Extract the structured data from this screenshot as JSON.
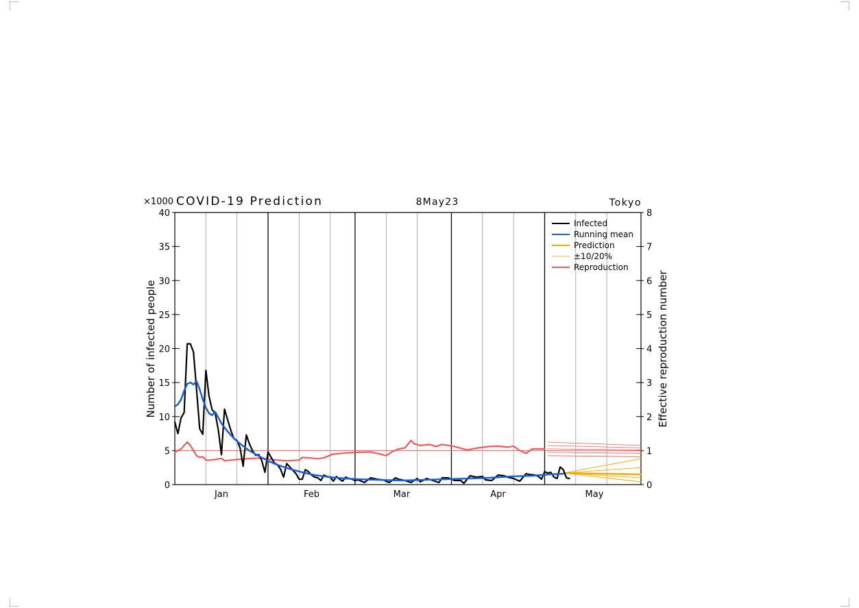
{
  "chart_data": {
    "type": "line",
    "title": "COVID-19 Prediction",
    "date": "8May23",
    "region": "Tokyo",
    "scale_label": "×1000",
    "ylabel": "Number of infected people",
    "y2label": "Effective reproduction number",
    "ylim": [
      0,
      40
    ],
    "yticks": [
      0,
      5,
      10,
      15,
      20,
      25,
      30,
      35,
      40
    ],
    "y2lim": [
      0,
      8
    ],
    "y2ticks": [
      0,
      1,
      2,
      3,
      4,
      5,
      6,
      7,
      8
    ],
    "xlim": [
      "2023-01-01",
      "2023-05-31"
    ],
    "month_labels": [
      {
        "label": "Jan",
        "date": "2023-01-16"
      },
      {
        "label": "Feb",
        "date": "2023-02-14"
      },
      {
        "label": "Mar",
        "date": "2023-03-15"
      },
      {
        "label": "Apr",
        "date": "2023-04-15"
      },
      {
        "label": "May",
        "date": "2023-05-16"
      }
    ],
    "month_boundaries": [
      "2023-01-31",
      "2023-02-28",
      "2023-03-31",
      "2023-04-30"
    ],
    "minor_gridlines": [
      "2023-01-11",
      "2023-01-21",
      "2023-02-10",
      "2023-02-20",
      "2023-03-10",
      "2023-03-20",
      "2023-04-10",
      "2023-04-20",
      "2023-05-10",
      "2023-05-20"
    ],
    "reference_line_R": 1,
    "legend": {
      "position": "top-right",
      "items": [
        {
          "label": "Infected",
          "color": "#000000",
          "width": 2
        },
        {
          "label": "Running mean",
          "color": "#1a5fd6",
          "width": 2
        },
        {
          "label": "Prediction",
          "color": "#f2a900",
          "width": 2
        },
        {
          "label": "±10/20%",
          "color": "#f2a900",
          "width": 0.7
        },
        {
          "label": "Reproduction",
          "color": "#f05a5a",
          "width": 2
        }
      ]
    },
    "series": [
      {
        "name": "Infected",
        "axis": "left",
        "color": "#000000",
        "x": [
          "2023-01-01",
          "2023-01-02",
          "2023-01-03",
          "2023-01-04",
          "2023-01-05",
          "2023-01-06",
          "2023-01-07",
          "2023-01-08",
          "2023-01-09",
          "2023-01-10",
          "2023-01-11",
          "2023-01-12",
          "2023-01-13",
          "2023-01-14",
          "2023-01-15",
          "2023-01-16",
          "2023-01-17",
          "2023-01-18",
          "2023-01-19",
          "2023-01-20",
          "2023-01-21",
          "2023-01-22",
          "2023-01-23",
          "2023-01-24",
          "2023-01-25",
          "2023-01-26",
          "2023-01-27",
          "2023-01-28",
          "2023-01-29",
          "2023-01-30",
          "2023-01-31",
          "2023-02-01",
          "2023-02-02",
          "2023-02-03",
          "2023-02-04",
          "2023-02-05",
          "2023-02-06",
          "2023-02-07",
          "2023-02-08",
          "2023-02-09",
          "2023-02-10",
          "2023-02-11",
          "2023-02-12",
          "2023-02-13",
          "2023-02-14",
          "2023-02-15",
          "2023-02-16",
          "2023-02-17",
          "2023-02-18",
          "2023-02-19",
          "2023-02-20",
          "2023-02-21",
          "2023-02-22",
          "2023-02-23",
          "2023-02-24",
          "2023-02-25",
          "2023-02-26",
          "2023-02-27",
          "2023-02-28",
          "2023-03-01",
          "2023-03-03",
          "2023-03-05",
          "2023-03-06",
          "2023-03-07",
          "2023-03-09",
          "2023-03-11",
          "2023-03-13",
          "2023-03-14",
          "2023-03-16",
          "2023-03-18",
          "2023-03-20",
          "2023-03-21",
          "2023-03-23",
          "2023-03-25",
          "2023-03-27",
          "2023-03-28",
          "2023-03-30",
          "2023-04-01",
          "2023-04-03",
          "2023-04-04",
          "2023-04-06",
          "2023-04-08",
          "2023-04-10",
          "2023-04-11",
          "2023-04-13",
          "2023-04-15",
          "2023-04-17",
          "2023-04-18",
          "2023-04-20",
          "2023-04-22",
          "2023-04-24",
          "2023-04-25",
          "2023-04-27",
          "2023-04-28",
          "2023-04-29",
          "2023-04-30",
          "2023-05-01",
          "2023-05-02",
          "2023-05-03",
          "2023-05-04",
          "2023-05-05",
          "2023-05-06",
          "2023-05-07",
          "2023-05-08"
        ],
        "values": [
          9.2,
          7.5,
          9.8,
          10.6,
          20.7,
          20.7,
          19.5,
          14.0,
          8.2,
          7.4,
          16.8,
          13.0,
          11.0,
          10.5,
          8.0,
          4.4,
          11.1,
          9.5,
          8.0,
          6.8,
          6.5,
          5.4,
          2.7,
          7.3,
          6.0,
          5.0,
          4.3,
          4.4,
          3.5,
          1.8,
          4.8,
          4.0,
          3.2,
          2.9,
          2.3,
          1.1,
          3.1,
          2.6,
          2.1,
          1.6,
          0.8,
          0.8,
          2.2,
          1.9,
          1.4,
          1.1,
          1.0,
          0.6,
          1.4,
          1.2,
          1.1,
          0.5,
          1.2,
          0.8,
          0.5,
          1.1,
          0.9,
          0.8,
          0.6,
          0.7,
          0.3,
          1.0,
          0.9,
          0.8,
          0.7,
          0.3,
          1.0,
          0.8,
          0.6,
          0.3,
          0.9,
          0.4,
          0.9,
          0.6,
          0.3,
          1.0,
          1.0,
          0.6,
          0.6,
          0.2,
          1.3,
          1.1,
          1.2,
          0.7,
          0.6,
          1.4,
          1.3,
          1.1,
          0.9,
          0.5,
          1.6,
          1.5,
          1.4,
          1.2,
          0.8,
          1.9,
          1.7,
          1.8,
          1.1,
          0.9,
          2.6,
          2.2,
          1.0,
          0.9
        ]
      },
      {
        "name": "Running mean",
        "axis": "left",
        "color": "#1a5fd6",
        "x": [
          "2023-01-01",
          "2023-01-02",
          "2023-01-03",
          "2023-01-04",
          "2023-01-05",
          "2023-01-06",
          "2023-01-07",
          "2023-01-08",
          "2023-01-09",
          "2023-01-10",
          "2023-01-11",
          "2023-01-12",
          "2023-01-13",
          "2023-01-14",
          "2023-01-16",
          "2023-01-18",
          "2023-01-20",
          "2023-01-22",
          "2023-01-25",
          "2023-01-28",
          "2023-01-31",
          "2023-02-03",
          "2023-02-07",
          "2023-02-11",
          "2023-02-15",
          "2023-02-20",
          "2023-02-25",
          "2023-03-01",
          "2023-03-08",
          "2023-03-15",
          "2023-03-22",
          "2023-03-29",
          "2023-04-05",
          "2023-04-12",
          "2023-04-19",
          "2023-04-26",
          "2023-05-01",
          "2023-05-06"
        ],
        "values": [
          11.5,
          11.8,
          12.5,
          13.8,
          14.8,
          15.0,
          14.7,
          15.2,
          14.0,
          12.5,
          11.3,
          10.5,
          10.2,
          10.7,
          9.0,
          7.8,
          6.8,
          6.0,
          5.0,
          4.2,
          3.5,
          2.9,
          2.3,
          1.8,
          1.4,
          1.1,
          0.9,
          0.8,
          0.7,
          0.6,
          0.7,
          0.8,
          0.9,
          1.0,
          1.2,
          1.3,
          1.5,
          1.6
        ]
      },
      {
        "name": "Prediction",
        "axis": "left",
        "color": "#f2a900",
        "x": [
          "2023-05-06",
          "2023-05-31"
        ],
        "values": [
          1.7,
          1.5
        ]
      },
      {
        "name": "±10/20%",
        "axis": "left",
        "color": "#f2a900",
        "lines": [
          {
            "x": [
              "2023-05-06",
              "2023-05-31"
            ],
            "values": [
              1.7,
              3.8
            ]
          },
          {
            "x": [
              "2023-05-06",
              "2023-05-31"
            ],
            "values": [
              1.7,
              2.5
            ]
          },
          {
            "x": [
              "2023-05-06",
              "2023-05-31"
            ],
            "values": [
              1.7,
              1.0
            ]
          },
          {
            "x": [
              "2023-05-06",
              "2023-05-31"
            ],
            "values": [
              1.7,
              0.4
            ]
          }
        ]
      },
      {
        "name": "Reproduction",
        "axis": "right",
        "color": "#f05a5a",
        "x": [
          "2023-01-01",
          "2023-01-03",
          "2023-01-05",
          "2023-01-06",
          "2023-01-07",
          "2023-01-08",
          "2023-01-09",
          "2023-01-10",
          "2023-01-11",
          "2023-01-12",
          "2023-01-14",
          "2023-01-16",
          "2023-01-17",
          "2023-01-20",
          "2023-01-24",
          "2023-01-28",
          "2023-01-31",
          "2023-02-03",
          "2023-02-06",
          "2023-02-10",
          "2023-02-11",
          "2023-02-14",
          "2023-02-16",
          "2023-02-18",
          "2023-02-21",
          "2023-02-23",
          "2023-02-25",
          "2023-03-01",
          "2023-03-05",
          "2023-03-08",
          "2023-03-10",
          "2023-03-12",
          "2023-03-14",
          "2023-03-16",
          "2023-03-18",
          "2023-03-19",
          "2023-03-21",
          "2023-03-24",
          "2023-03-26",
          "2023-03-28",
          "2023-04-01",
          "2023-04-05",
          "2023-04-08",
          "2023-04-12",
          "2023-04-15",
          "2023-04-18",
          "2023-04-20",
          "2023-04-22",
          "2023-04-24",
          "2023-04-26",
          "2023-04-28",
          "2023-04-30"
        ],
        "values": [
          0.95,
          1.05,
          1.25,
          1.15,
          1.0,
          0.85,
          0.8,
          0.82,
          0.72,
          0.72,
          0.74,
          0.77,
          0.7,
          0.73,
          0.76,
          0.78,
          0.75,
          0.72,
          0.7,
          0.72,
          0.8,
          0.78,
          0.76,
          0.79,
          0.9,
          0.91,
          0.93,
          0.95,
          0.96,
          0.9,
          0.85,
          0.97,
          1.05,
          1.08,
          1.3,
          1.2,
          1.15,
          1.18,
          1.12,
          1.18,
          1.12,
          1.02,
          1.07,
          1.12,
          1.13,
          1.1,
          1.13,
          1.0,
          0.92,
          1.05,
          1.05,
          1.05
        ]
      }
    ],
    "reproduction_projection": {
      "name": "Reproduction projection",
      "color": "#f05a5a",
      "lines": [
        {
          "x": [
            "2023-05-01",
            "2023-05-31"
          ],
          "values": [
            1.25,
            1.15
          ]
        },
        {
          "x": [
            "2023-05-01",
            "2023-05-31"
          ],
          "values": [
            1.15,
            1.08
          ]
        },
        {
          "x": [
            "2023-05-01",
            "2023-05-31"
          ],
          "values": [
            1.05,
            1.02
          ]
        },
        {
          "x": [
            "2023-05-01",
            "2023-05-31"
          ],
          "values": [
            0.95,
            0.92
          ]
        },
        {
          "x": [
            "2023-05-01",
            "2023-05-31"
          ],
          "values": [
            0.85,
            0.82
          ]
        }
      ]
    }
  }
}
